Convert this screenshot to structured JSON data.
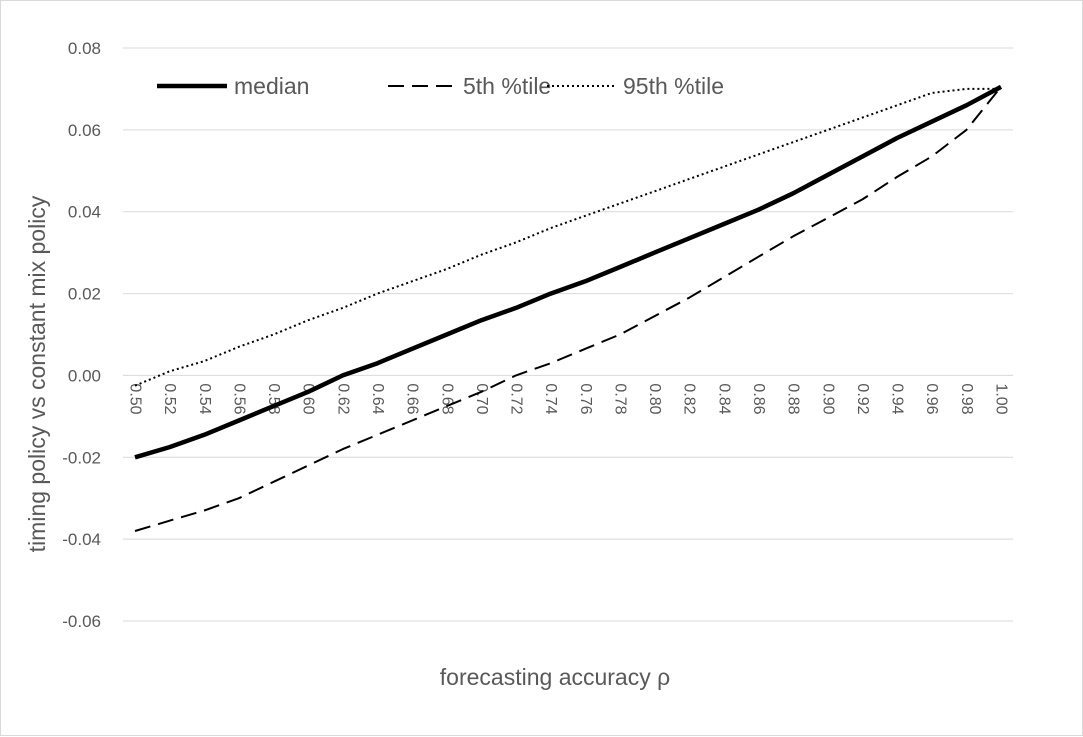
{
  "chart_data": {
    "type": "line",
    "title": "",
    "xlabel": "forecasting accuracy ρ",
    "ylabel": "timing policy vs constant mix policy",
    "ylim": [
      -0.06,
      0.08
    ],
    "y_ticks": [
      "-0.06",
      "-0.04",
      "-0.02",
      "0.00",
      "0.02",
      "0.04",
      "0.06",
      "0.08"
    ],
    "y_tick_values": [
      -0.06,
      -0.04,
      -0.02,
      0.0,
      0.02,
      0.04,
      0.06,
      0.08
    ],
    "categories": [
      "0.50",
      "0.52",
      "0.54",
      "0.56",
      "0.58",
      "0.60",
      "0.62",
      "0.64",
      "0.66",
      "0.68",
      "0.70",
      "0.72",
      "0.74",
      "0.76",
      "0.78",
      "0.80",
      "0.82",
      "0.84",
      "0.86",
      "0.88",
      "0.90",
      "0.92",
      "0.94",
      "0.96",
      "0.98",
      "1.00"
    ],
    "grid": "horizontal",
    "legend_position": "top-left",
    "series": [
      {
        "name": "median",
        "style": "solid",
        "color": "#000000",
        "values": [
          -0.02,
          -0.0175,
          -0.0145,
          -0.011,
          -0.0075,
          -0.004,
          0.0,
          0.003,
          0.0065,
          0.01,
          0.0135,
          0.0165,
          0.02,
          0.023,
          0.0265,
          0.03,
          0.0335,
          0.037,
          0.0405,
          0.0445,
          0.049,
          0.0535,
          0.058,
          0.062,
          0.066,
          0.0705
        ]
      },
      {
        "name": "5th %tile",
        "style": "dashed",
        "color": "#000000",
        "values": [
          -0.038,
          -0.0355,
          -0.033,
          -0.03,
          -0.026,
          -0.022,
          -0.018,
          -0.0145,
          -0.011,
          -0.0075,
          -0.004,
          0.0,
          0.003,
          0.0065,
          0.01,
          0.0145,
          0.019,
          0.024,
          0.029,
          0.034,
          0.0385,
          0.043,
          0.0485,
          0.0535,
          0.06,
          0.0705
        ]
      },
      {
        "name": "95th %tile",
        "style": "dotted",
        "color": "#000000",
        "values": [
          -0.0025,
          0.001,
          0.0035,
          0.007,
          0.01,
          0.0135,
          0.0165,
          0.02,
          0.023,
          0.026,
          0.0295,
          0.0325,
          0.036,
          0.039,
          0.042,
          0.045,
          0.048,
          0.051,
          0.054,
          0.057,
          0.06,
          0.063,
          0.066,
          0.069,
          0.07,
          0.07
        ]
      }
    ]
  }
}
